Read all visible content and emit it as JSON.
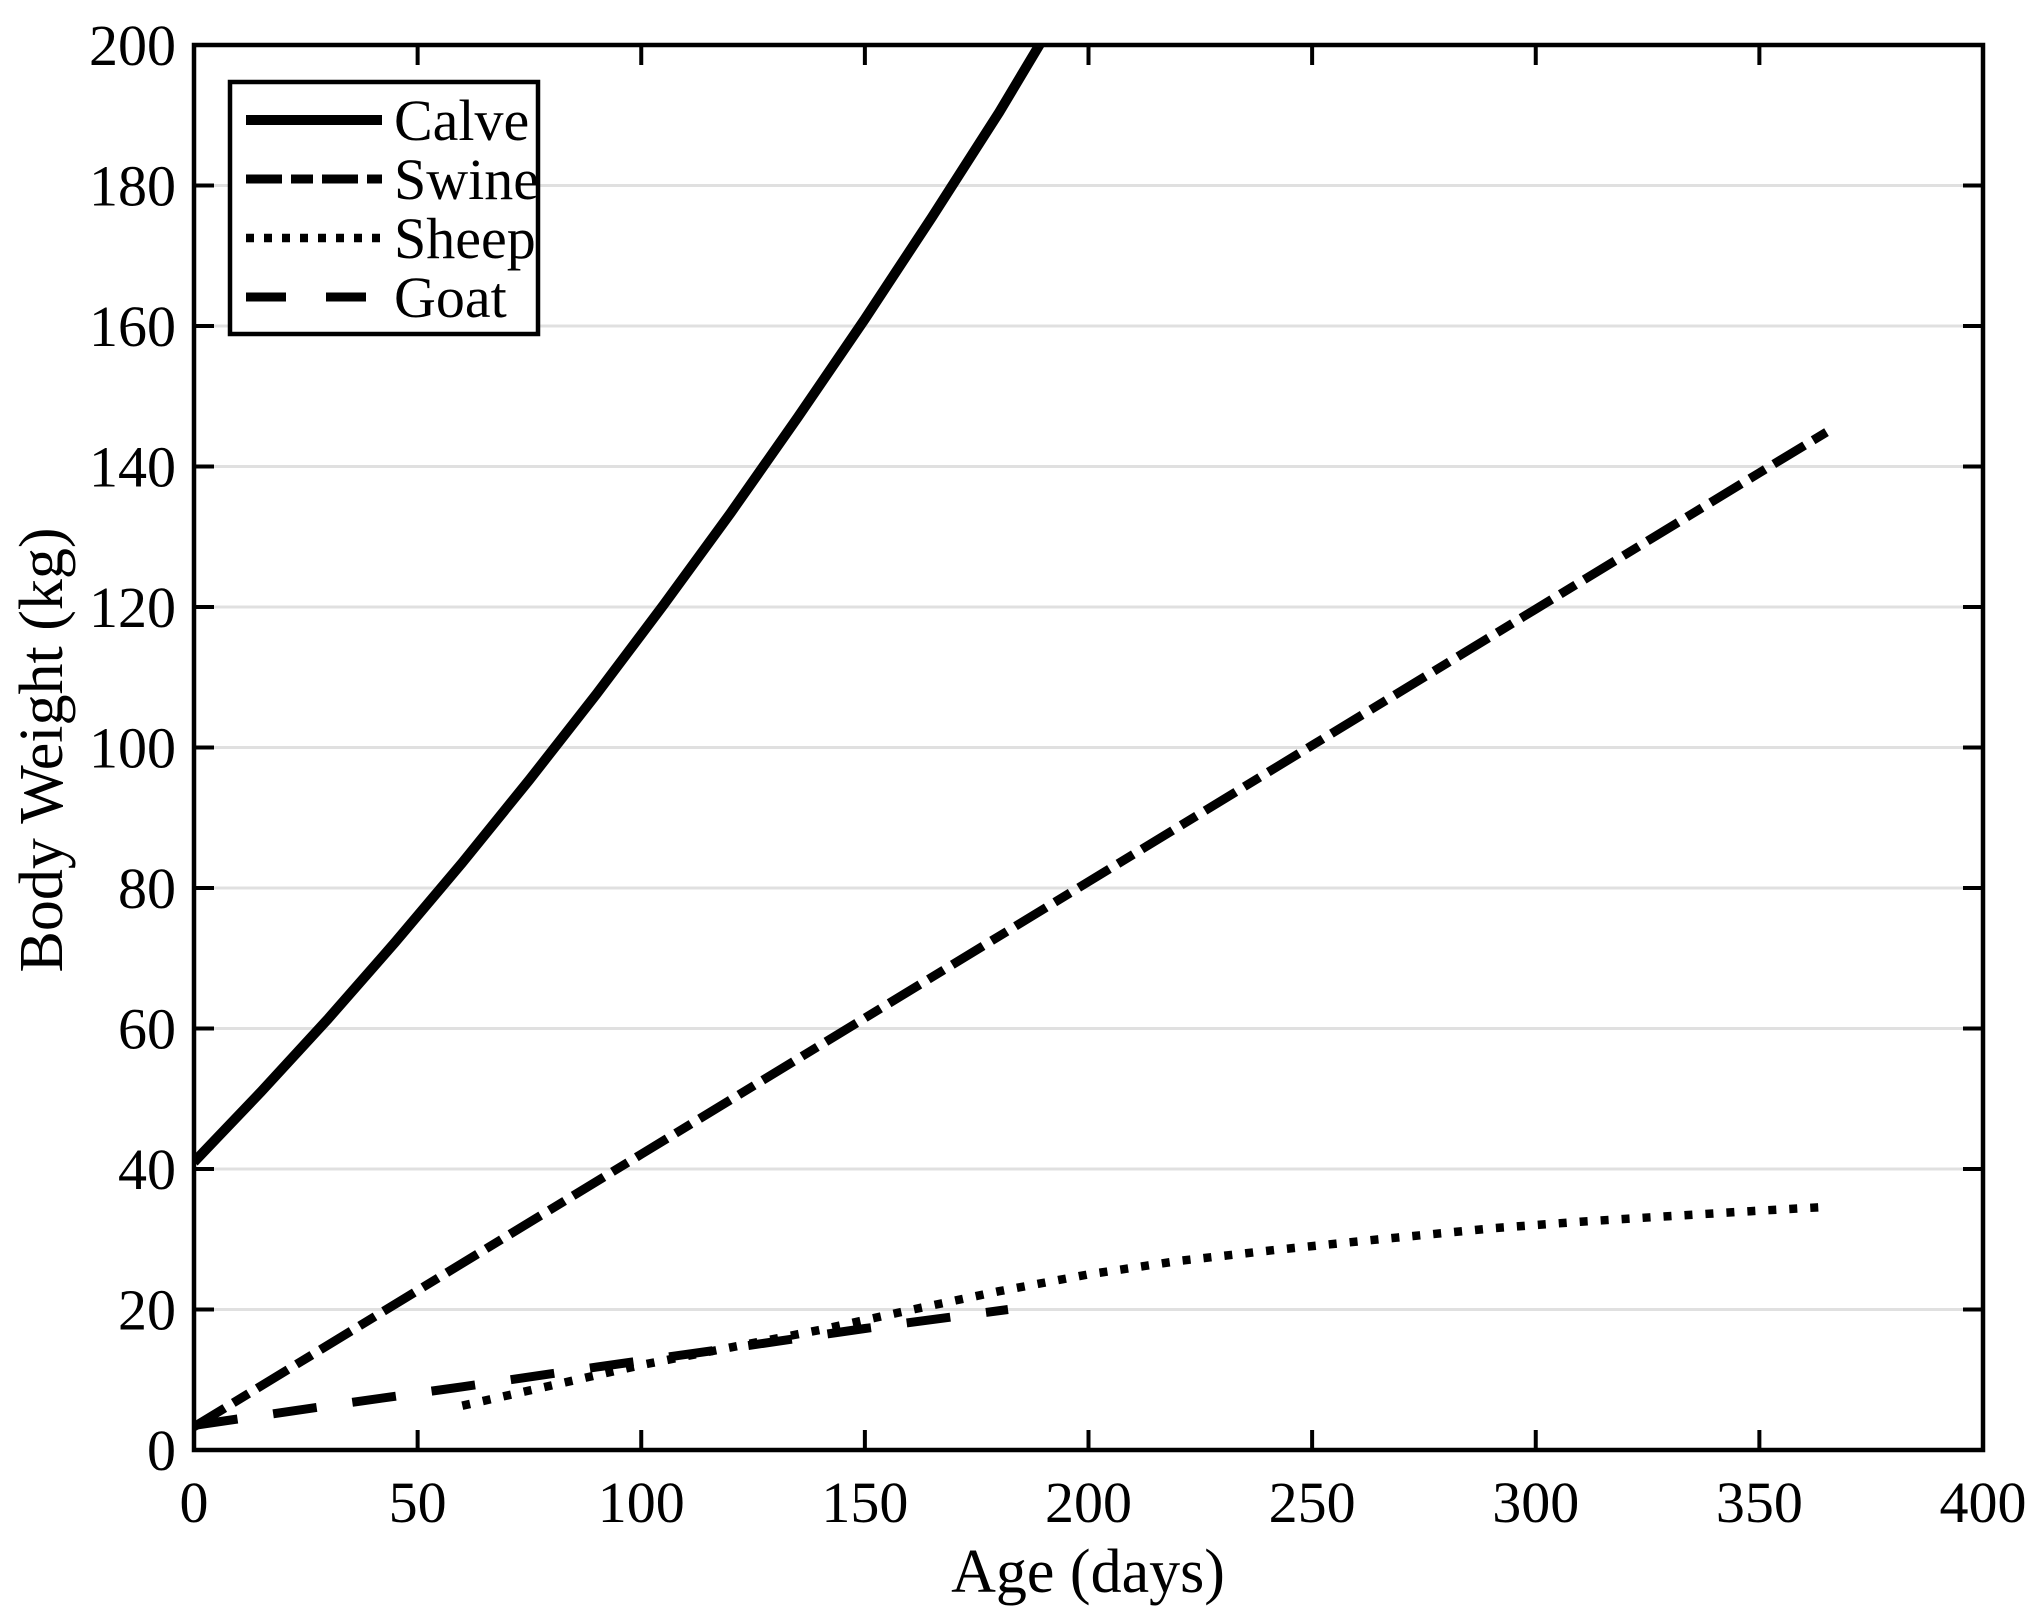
{
  "chart_data": {
    "type": "line",
    "title": "",
    "xlabel": "Age (days)",
    "ylabel": "Body Weight (kg)",
    "xlim": [
      0,
      400
    ],
    "ylim": [
      0,
      200
    ],
    "xticks": [
      0,
      50,
      100,
      150,
      200,
      250,
      300,
      350,
      400
    ],
    "yticks": [
      0,
      20,
      40,
      60,
      80,
      100,
      120,
      140,
      160,
      180,
      200
    ],
    "grid": "horizontal-only",
    "colors": {
      "ink": "#000000",
      "grid": "#e0e0e0",
      "background": "#ffffff"
    },
    "legend": {
      "position": "top-left",
      "entries": [
        "Calve",
        "Swine",
        "Sheep",
        "Goat"
      ]
    },
    "series": [
      {
        "name": "Calve",
        "style": "solid",
        "points": [
          [
            0,
            41
          ],
          [
            15,
            51
          ],
          [
            30,
            61.4
          ],
          [
            45,
            72.3
          ],
          [
            60,
            83.6
          ],
          [
            75,
            95.4
          ],
          [
            90,
            107.6
          ],
          [
            105,
            120.3
          ],
          [
            120,
            133.4
          ],
          [
            135,
            147
          ],
          [
            150,
            161
          ],
          [
            165,
            175.5
          ],
          [
            180,
            190.4
          ],
          [
            189.5,
            200.5
          ]
        ]
      },
      {
        "name": "Swine",
        "style": "dash-dot",
        "points": [
          [
            0,
            3.3
          ],
          [
            50,
            22.7
          ],
          [
            100,
            42.1
          ],
          [
            150,
            61.5
          ],
          [
            200,
            80.9
          ],
          [
            250,
            100.3
          ],
          [
            300,
            119.7
          ],
          [
            350,
            139.1
          ],
          [
            365,
            144.9
          ]
        ]
      },
      {
        "name": "Sheep",
        "style": "dotted",
        "points": [
          [
            60,
            6.3
          ],
          [
            80,
            9.2
          ],
          [
            100,
            12.1
          ],
          [
            120,
            14.6
          ],
          [
            140,
            17.1
          ],
          [
            160,
            19.9
          ],
          [
            180,
            22.6
          ],
          [
            200,
            25
          ],
          [
            220,
            26.9
          ],
          [
            242,
            28.5
          ],
          [
            265,
            30
          ],
          [
            291,
            31.6
          ],
          [
            310,
            32.5
          ],
          [
            330,
            33.3
          ],
          [
            348,
            34
          ],
          [
            365,
            34.6
          ]
        ]
      },
      {
        "name": "Goat",
        "style": "dashed",
        "points": [
          [
            0,
            3.5
          ],
          [
            30,
            6.3
          ],
          [
            60,
            9
          ],
          [
            90,
            11.8
          ],
          [
            120,
            14.5
          ],
          [
            150,
            17.3
          ],
          [
            182,
            20
          ]
        ]
      }
    ]
  }
}
